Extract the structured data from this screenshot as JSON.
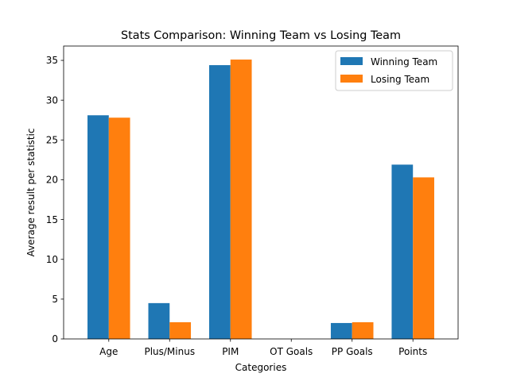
{
  "chart_data": {
    "type": "bar",
    "title": "Stats Comparison: Winning Team vs Losing Team",
    "xlabel": "Categories",
    "ylabel": "Average result per statistic",
    "categories": [
      "Age",
      "Plus/Minus",
      "PIM",
      "OT Goals",
      "PP Goals",
      "Points"
    ],
    "series": [
      {
        "name": "Winning Team",
        "color": "#1f77b4",
        "values": [
          28.1,
          4.5,
          34.4,
          0,
          2.0,
          21.9
        ]
      },
      {
        "name": "Losing Team",
        "color": "#ff7f0e",
        "values": [
          27.8,
          2.1,
          35.1,
          0,
          2.1,
          20.3
        ]
      }
    ],
    "ylim": [
      0,
      36.8
    ],
    "yticks": [
      0,
      5,
      10,
      15,
      20,
      25,
      30,
      35
    ],
    "grid": false,
    "legend": "top-right"
  }
}
